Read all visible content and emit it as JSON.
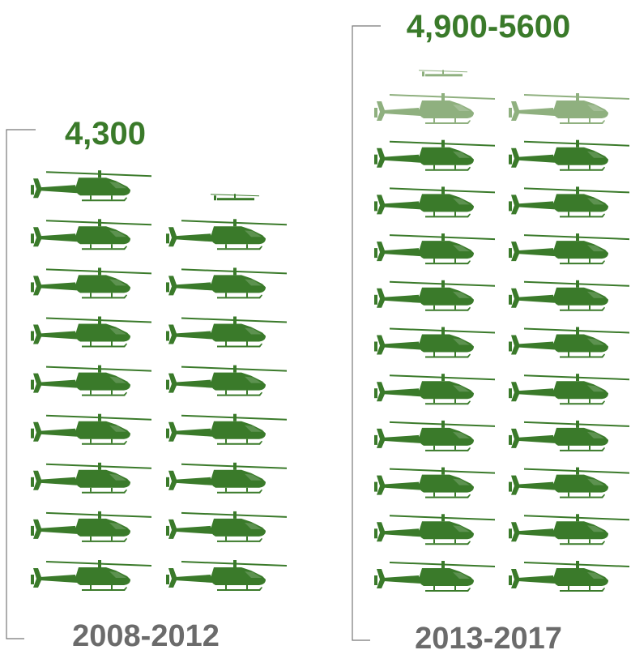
{
  "chart_data": {
    "type": "pictograph",
    "icon": "helicopter-icon",
    "colors": {
      "solid": "#3a7a2a",
      "range": "#8fb07f",
      "period_label": "#6b6b6b",
      "bracket": "#777777"
    },
    "groups": [
      {
        "category": "2008-2012",
        "value_label": "4,300",
        "icons_solid": 17,
        "icons_range": 0,
        "partial_icon": true
      },
      {
        "category": "2013-2017",
        "value_label": "4,900-5600",
        "icons_solid": 20,
        "icons_range": 2,
        "partial_icon": true
      }
    ]
  }
}
